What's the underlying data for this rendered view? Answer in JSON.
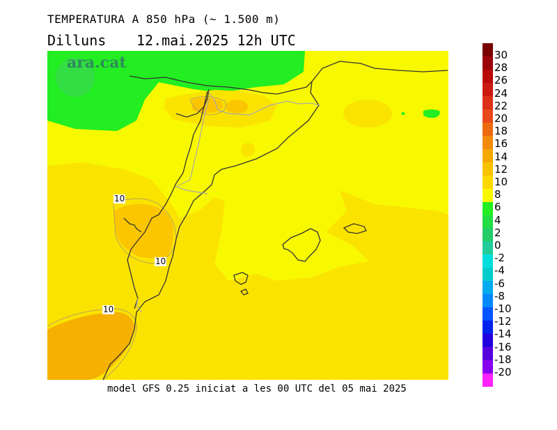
{
  "header": {
    "title": "TEMPERATURA A 850 hPa (~ 1.500 m)",
    "day": "Dilluns",
    "datetime": "12.mai.2025 12h UTC"
  },
  "map": {
    "brand": "ara.cat",
    "contour_labels": [
      "10",
      "10",
      "10"
    ],
    "colors": {
      "green": "#22ee22",
      "yellow": "#f8f800",
      "yellow_orange": "#fbe300",
      "orange": "#fbc600",
      "dark_orange": "#f5b000"
    }
  },
  "colorbar": {
    "labels": [
      "30",
      "28",
      "26",
      "24",
      "22",
      "20",
      "18",
      "16",
      "14",
      "12",
      "10",
      "8",
      "6",
      "4",
      "2",
      "0",
      "-2",
      "-4",
      "-6",
      "-8",
      "-10",
      "-12",
      "-14",
      "-16",
      "-18",
      "-20"
    ],
    "colors": [
      "#7a0000",
      "#9c0008",
      "#b80a0a",
      "#cc1a12",
      "#dd3018",
      "#e8481c",
      "#ee6a10",
      "#f28a0a",
      "#f6a800",
      "#f9c200",
      "#fcd800",
      "#f8f800",
      "#22ee22",
      "#22dd44",
      "#22cc66",
      "#22cc99",
      "#00dddd",
      "#00cccc",
      "#00aaee",
      "#0088ff",
      "#0055ff",
      "#0022ee",
      "#2200dd",
      "#5500dd",
      "#8800ee",
      "#ff22ff"
    ]
  },
  "footer": {
    "text": "model GFS 0.25 iniciat a les 00 UTC del 05 mai 2025"
  }
}
